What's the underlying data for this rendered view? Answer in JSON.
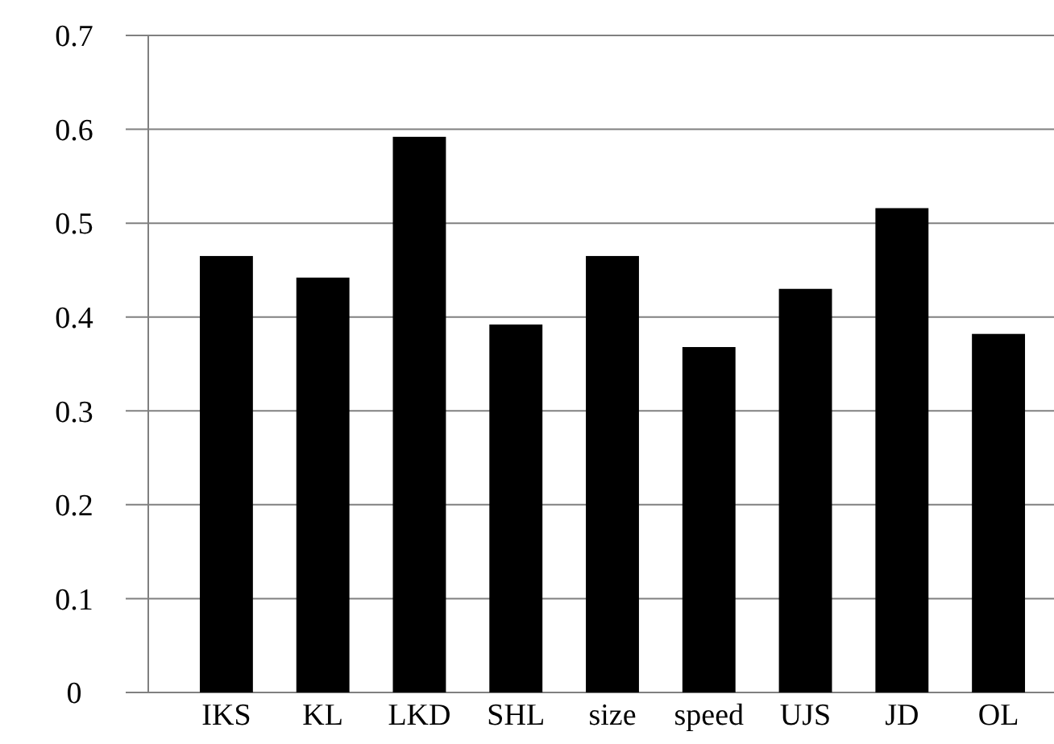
{
  "chart_data": {
    "type": "bar",
    "categories": [
      "IKS",
      "KL",
      "LKD",
      "SHL",
      "size",
      "speed",
      "UJS",
      "JD",
      "OL"
    ],
    "values": [
      0.465,
      0.442,
      0.592,
      0.392,
      0.465,
      0.368,
      0.43,
      0.516,
      0.382
    ],
    "color": "#000000",
    "ylim": [
      0,
      0.7
    ],
    "yticks": [
      0,
      0.1,
      0.2,
      0.3,
      0.4,
      0.5,
      0.6,
      0.7
    ],
    "grid": "y"
  }
}
